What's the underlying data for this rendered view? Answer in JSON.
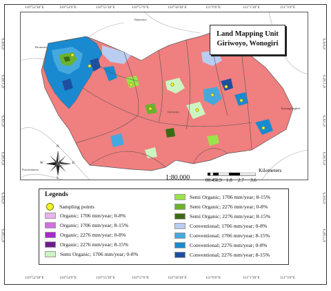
{
  "map": {
    "title_line1": "Land Mapping Unit",
    "title_line2": "Giriwoyo, Wonogiri",
    "scale_text": "1:80.000",
    "scalebar": {
      "unit": "Kilometers",
      "ticks": [
        "00.45",
        "0.9",
        "1.8",
        "2.7",
        "3.6"
      ]
    },
    "top_coords": [
      "110°52'30\"E",
      "110°54'0\"E",
      "110°55'30\"E",
      "110°57'0\"E",
      "110°58'30\"E",
      "111°0'0\"E",
      "111°1'30\"E",
      "111°3'0\"E"
    ],
    "bottom_coords": [
      "110°52'30\"E",
      "110°54'0\"E",
      "110°55'30\"E",
      "110°57'0\"E",
      "110°58'30\"E",
      "111°0'0\"E",
      "111°1'30\"E",
      "111°3'0\"E"
    ],
    "left_coords": [
      "8°0'0\"S",
      "8°1'30\"S",
      "8°3'0\"S",
      "8°4'30\"S",
      "8°6'0\"S",
      "8°7'30\"S"
    ],
    "right_coords": [
      "8°0'0\"S",
      "8°1'30\"S",
      "8°3'0\"S",
      "8°4'30\"S",
      "8°6'0\"S",
      "8°7'30\"S"
    ],
    "place_names": [
      "Baturetno",
      "Bromoko",
      "Giriwoyo",
      "Karanglengkeh",
      "Pracimantoro"
    ],
    "compass_labels": [
      "N",
      "S",
      "E",
      "W"
    ]
  },
  "legend": {
    "title": "Legends",
    "items_left": [
      {
        "label": "Sampling points",
        "color": "#f4f22a",
        "kind": "point"
      },
      {
        "label": "Organic; 1706 mm/year; 0-8%",
        "color": "#e6b3f0",
        "kind": "area"
      },
      {
        "label": "Organic; 1706 mm/year; 8-15%",
        "color": "#d36fe0",
        "kind": "area"
      },
      {
        "label": "Organic; 2276 mm/year; 0-8%",
        "color": "#a62ad0",
        "kind": "area"
      },
      {
        "label": "Organic; 2276 mm/year; 8-15%",
        "color": "#6d1c8e",
        "kind": "area"
      },
      {
        "label": "Semi Organic; 1706 mm/year; 0-8%",
        "color": "#ccf5c2",
        "kind": "area"
      }
    ],
    "items_right": [
      {
        "label": "Semi Organic; 1706 mm/year; 8-15%",
        "color": "#9be34a",
        "kind": "area"
      },
      {
        "label": "Semi Organic; 2276 mm/year; 0-8%",
        "color": "#6bb22d",
        "kind": "area"
      },
      {
        "label": "Semi Organic; 2276 mm/year; 8-15%",
        "color": "#3d6a14",
        "kind": "area"
      },
      {
        "label": "Conventional; 1706 mm/year; 0-8%",
        "color": "#b9cdf0",
        "kind": "area"
      },
      {
        "label": "Conventional; 1706 mm/year; 8-15%",
        "color": "#45a9e0",
        "kind": "area"
      },
      {
        "label": "Conventional; 2276 mm/year; 0-8%",
        "color": "#1a8ad0",
        "kind": "area"
      },
      {
        "label": "Conventional; 2276 mm/year; 8-15%",
        "color": "#1d4fa0",
        "kind": "area"
      }
    ]
  },
  "colors": {
    "land_unit_main": "#f07f7f",
    "boundary": "#555555"
  }
}
